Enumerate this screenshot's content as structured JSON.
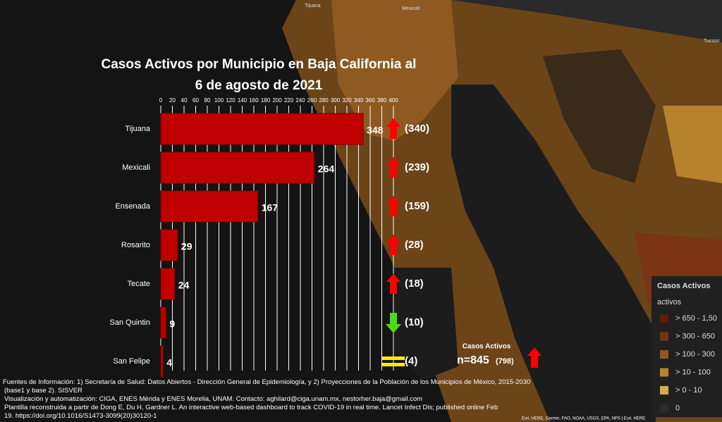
{
  "chart_data": {
    "type": "bar",
    "orientation": "horizontal",
    "title_lines": [
      "Casos Activos por Municipio en Baja California al",
      "6 de agosto de 2021"
    ],
    "categories": [
      "Tijuana",
      "Mexicali",
      "Ensenada",
      "Rosarito",
      "Tecate",
      "San Quintin",
      "San Felipe"
    ],
    "values": [
      348,
      264,
      167,
      29,
      24,
      9,
      4
    ],
    "color": "#c00000",
    "previous": {
      "values": [
        340,
        239,
        159,
        28,
        18,
        10,
        4
      ],
      "value_labels": [
        "(340)",
        "(239)",
        "(159)",
        "(28)",
        "(18)",
        "(10)",
        "(4)"
      ]
    },
    "trend": [
      "up",
      "up",
      "up",
      "up",
      "up",
      "down",
      "equal"
    ],
    "xlim": [
      0,
      400
    ],
    "xticks": [
      0,
      20,
      40,
      60,
      80,
      100,
      120,
      140,
      160,
      180,
      200,
      220,
      240,
      260,
      280,
      300,
      320,
      340,
      360,
      380,
      400
    ],
    "grid": true,
    "total": {
      "title": "Casos Activos",
      "current": {
        "value": 845,
        "label": "n=845"
      },
      "previous": {
        "value": 798,
        "label": "(798)"
      },
      "trend": "up"
    }
  },
  "map": {
    "labels": [
      "Tijuana",
      "Mexicali",
      "Tucson"
    ],
    "legend": {
      "title": "Casos Activos",
      "subtitle": "activos",
      "items": [
        {
          "label": "> 650 - 1,50",
          "color": "#5a1a10"
        },
        {
          "label": "> 300 - 650",
          "color": "#7a3414"
        },
        {
          "label": "> 100 - 300",
          "color": "#9a5420"
        },
        {
          "label": "> 10 - 100",
          "color": "#b8822c"
        },
        {
          "label": "> 0 - 10",
          "color": "#d2b048"
        },
        {
          "label": "0",
          "color": "#2a2a2a"
        }
      ]
    },
    "attribution": "Esri, HERE, Garmin, FAO, NOAA, USGS, EPA, NPS | Esri, HERE"
  },
  "notes": [
    "Fuentes de Información: 1) Secretaría de Salud: Datos Abiertos - Dirección General de Epidemiología, y 2) Proyecciones de la Población de los Municipios de México, 2015-2030",
    "(base1 y base 2). SISVER",
    "Visualización y automatización: CIGA, ENES Mérida y ENES Morelia, UNAM. Contacto: aghilard@ciga.unam.mx, nestorher.baja@gmail.com",
    "Plantilla reconstruida a partir de Dong E, Du H, Gardner L. An interactive web-based dashboard to track COVID-19 in real time. Lancet Infect Dis; published online Feb",
    "19. https://doi.org/10.1016/S1473-3099(20)30120-1"
  ]
}
